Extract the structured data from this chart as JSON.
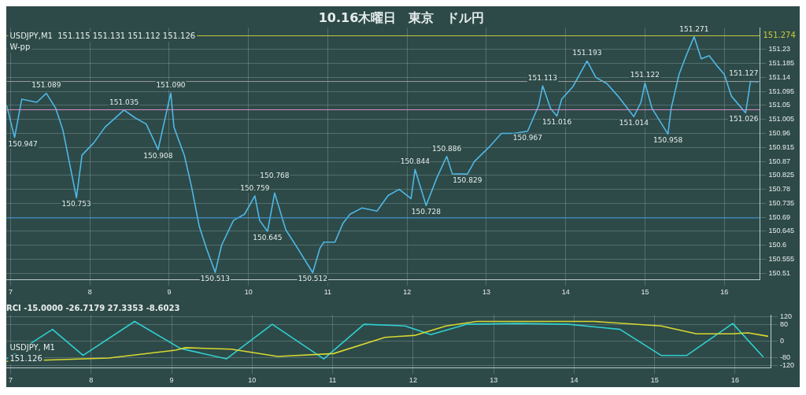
{
  "chart_data": [
    {
      "type": "line",
      "title": "10.16木曜日　東京　ドル円",
      "xlim": [
        6.95,
        16.45
      ],
      "xticks": [
        7,
        8,
        9,
        10,
        11,
        12,
        13,
        14,
        15,
        16
      ],
      "ylim": [
        150.49,
        151.3
      ],
      "yticks": [
        150.51,
        150.555,
        150.6,
        150.645,
        150.69,
        150.735,
        150.78,
        150.825,
        150.87,
        150.915,
        150.96,
        151.005,
        151.05,
        151.095,
        151.14,
        151.185,
        151.23
      ],
      "grid": true,
      "legend": false,
      "marker": "none",
      "line_style": "solid",
      "series": [
        {
          "color": "#4fb8e6",
          "x": [
            6.95,
            7.05,
            7.14,
            7.33,
            7.45,
            7.57,
            7.66,
            7.83,
            7.9,
            8.05,
            8.19,
            8.43,
            8.57,
            8.71,
            8.86,
            9.02,
            9.06,
            9.19,
            9.28,
            9.38,
            9.47,
            9.58,
            9.66,
            9.81,
            9.95,
            10.08,
            10.14,
            10.24,
            10.33,
            10.47,
            10.62,
            10.81,
            10.9,
            10.95,
            11.09,
            11.19,
            11.28,
            11.43,
            11.62,
            11.76,
            11.9,
            12.05,
            12.1,
            12.24,
            12.38,
            12.5,
            12.57,
            12.76,
            12.85,
            13.05,
            13.19,
            13.35,
            13.52,
            13.66,
            13.71,
            13.81,
            13.89,
            13.95,
            14.09,
            14.27,
            14.38,
            14.52,
            14.66,
            14.86,
            14.95,
            15.0,
            15.09,
            15.29,
            15.33,
            15.43,
            15.52,
            15.62,
            15.71,
            15.81,
            15.9,
            16.0,
            16.09,
            16.27,
            16.33,
            16.43
          ],
          "values": [
            151.05,
            150.947,
            151.07,
            151.06,
            151.089,
            151.04,
            150.97,
            150.753,
            150.89,
            150.93,
            150.98,
            151.035,
            151.01,
            150.99,
            150.908,
            151.09,
            150.98,
            150.89,
            150.79,
            150.66,
            150.59,
            150.513,
            150.6,
            150.68,
            150.7,
            150.759,
            150.68,
            150.645,
            150.768,
            150.65,
            150.59,
            150.512,
            150.59,
            150.61,
            150.61,
            150.67,
            150.7,
            150.72,
            150.71,
            150.76,
            150.78,
            150.75,
            150.844,
            150.728,
            150.82,
            150.886,
            150.83,
            150.829,
            150.87,
            150.92,
            150.96,
            150.96,
            150.967,
            151.05,
            151.113,
            151.04,
            151.016,
            151.07,
            151.11,
            151.193,
            151.14,
            151.12,
            151.08,
            151.014,
            151.06,
            151.122,
            151.04,
            150.958,
            151.04,
            151.15,
            151.21,
            151.271,
            151.2,
            151.21,
            151.18,
            151.15,
            151.08,
            151.026,
            151.127,
            151.126
          ]
        }
      ],
      "ref_lines": [
        {
          "axis": "y",
          "value": 151.274,
          "label": "151.274",
          "color": "#c8c83c"
        },
        {
          "axis": "y",
          "value": 151.127,
          "color": "#9a9a9a"
        },
        {
          "axis": "y",
          "value": 151.036,
          "color": "#d888c8"
        },
        {
          "axis": "y",
          "value": 150.688,
          "color": "#3a8fd8"
        }
      ],
      "annotations": [
        "USDJPY,M1  151.115 151.131 151.112 151.126",
        "W-pp",
        {
          "text": "151.089",
          "x": 7.45,
          "y": 151.089
        },
        {
          "text": "150.947",
          "x": 7.05,
          "y": 150.947
        },
        {
          "text": "151.035",
          "x": 8.43,
          "y": 151.035
        },
        {
          "text": "151.090",
          "x": 9.02,
          "y": 151.09
        },
        {
          "text": "150.753",
          "x": 7.83,
          "y": 150.753
        },
        {
          "text": "150.908",
          "x": 8.86,
          "y": 150.908
        },
        {
          "text": "150.513",
          "x": 9.58,
          "y": 150.513
        },
        {
          "text": "150.759",
          "x": 10.08,
          "y": 150.759
        },
        {
          "text": "150.768",
          "x": 10.33,
          "y": 150.768
        },
        {
          "text": "150.645",
          "x": 10.24,
          "y": 150.645
        },
        {
          "text": "150.512",
          "x": 10.81,
          "y": 150.512
        },
        {
          "text": "150.844",
          "x": 12.1,
          "y": 150.844
        },
        {
          "text": "150.886",
          "x": 12.5,
          "y": 150.886
        },
        {
          "text": "150.728",
          "x": 12.24,
          "y": 150.728
        },
        {
          "text": "150.829",
          "x": 12.76,
          "y": 150.829
        },
        {
          "text": "150.967",
          "x": 13.52,
          "y": 150.967
        },
        {
          "text": "151.113",
          "x": 13.71,
          "y": 151.113
        },
        {
          "text": "151.016",
          "x": 13.89,
          "y": 151.016
        },
        {
          "text": "151.193",
          "x": 14.27,
          "y": 151.193
        },
        {
          "text": "151.122",
          "x": 15.0,
          "y": 151.122
        },
        {
          "text": "151.014",
          "x": 14.86,
          "y": 151.014
        },
        {
          "text": "150.958",
          "x": 15.29,
          "y": 150.958
        },
        {
          "text": "151.271",
          "x": 15.62,
          "y": 151.271
        },
        {
          "text": "151.026",
          "x": 16.27,
          "y": 151.026
        },
        {
          "text": "151.127",
          "x": 16.33,
          "y": 151.127
        }
      ]
    },
    {
      "type": "line",
      "title": "RCI -15.0000 -26.7179 27.3353 -8.6023",
      "xlim": [
        6.95,
        16.45
      ],
      "xticks": [
        7,
        8,
        9,
        10,
        11,
        12,
        13,
        14,
        15,
        16
      ],
      "ylim": [
        -130,
        130
      ],
      "yticks": [
        -120,
        -80,
        0,
        80,
        120
      ],
      "grid": true,
      "legend": false,
      "marker": "none",
      "line_style": "solid",
      "series": [
        {
          "color": "#d8d830",
          "x": [
            6.95,
            8.22,
            9.05,
            9.17,
            9.74,
            10.32,
            11.01,
            11.65,
            12.03,
            12.41,
            12.79,
            14.25,
            15.08,
            15.52,
            15.97,
            16.16,
            16.41
          ],
          "values": [
            -99,
            -83,
            -44,
            -32,
            -39,
            -75,
            -61,
            19,
            29,
            75,
            97,
            97,
            75,
            36,
            36,
            41,
            24
          ]
        },
        {
          "color": "#30d0d0",
          "x": [
            6.95,
            7.52,
            7.9,
            8.54,
            9.11,
            9.68,
            10.25,
            10.89,
            11.39,
            11.9,
            12.22,
            12.66,
            13.3,
            13.93,
            14.57,
            15.08,
            15.4,
            15.97,
            16.35
          ],
          "values": [
            -87,
            58,
            -70,
            97,
            -36,
            -87,
            83,
            -87,
            83,
            75,
            32,
            83,
            87,
            83,
            58,
            -70,
            -70,
            87,
            -78
          ]
        }
      ],
      "annotations": [
        "USDJPY, M1",
        "151.126"
      ]
    }
  ]
}
